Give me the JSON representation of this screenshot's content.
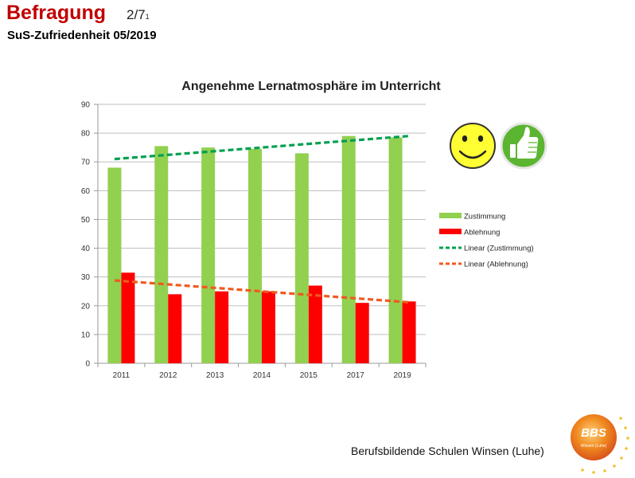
{
  "header": {
    "title": "Befragung",
    "page": "2/7",
    "page_sub": "1",
    "subtitle": "SuS-Zufriedenheit  05/2019"
  },
  "footer": {
    "org": "Berufsbildende Schulen Winsen (Luhe)",
    "logo_text": "BBS",
    "logo_caption": "Winsen (Luhe)"
  },
  "icons": [
    "smiley-icon",
    "thumbs-up-icon"
  ],
  "colors": {
    "zustimmung": "#92d050",
    "ablehnung": "#ff0000",
    "trend_zustimmung": "#00a050",
    "trend_ablehnung": "#f05a1e",
    "header_red": "#c00000",
    "smiley_fill": "#ffff33",
    "thumb_circle": "#5cb531"
  },
  "chart_data": {
    "type": "bar",
    "title": "Angenehme Lernatmosphäre im Unterricht",
    "xlabel": "",
    "ylabel": "",
    "categories": [
      "2011",
      "2012",
      "2013",
      "2014",
      "2015",
      "2017",
      "2019"
    ],
    "ylim": [
      0,
      90
    ],
    "yticks": [
      0,
      10,
      20,
      30,
      40,
      50,
      60,
      70,
      80,
      90
    ],
    "grid": true,
    "legend_position": "right",
    "series": [
      {
        "name": "Zustimmung",
        "values": [
          68,
          75.5,
          75,
          74.5,
          73,
          79,
          78.5
        ]
      },
      {
        "name": "Ablehnung",
        "values": [
          31.5,
          24,
          25,
          25,
          27,
          21,
          21.5
        ]
      }
    ],
    "trendlines": [
      {
        "name": "Linear (Zustimmung)",
        "of": "Zustimmung",
        "start": 71,
        "end": 79
      },
      {
        "name": "Linear (Ablehnung)",
        "of": "Ablehnung",
        "start": 28.8,
        "end": 21.2
      }
    ]
  }
}
